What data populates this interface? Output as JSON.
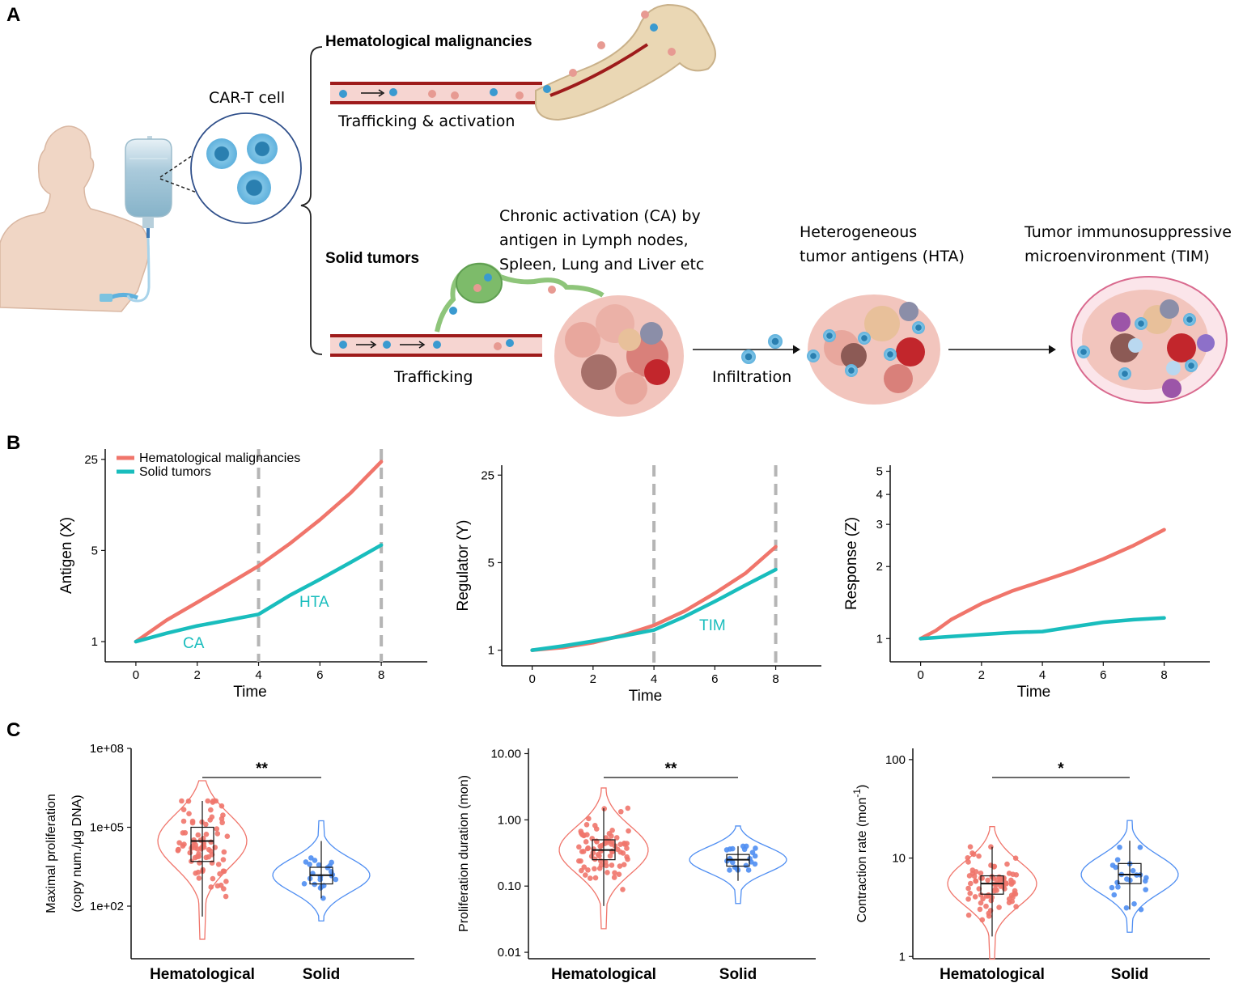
{
  "panel_labels": {
    "a": "A",
    "b": "B",
    "c": "C"
  },
  "panel_a": {
    "car_t_label": "CAR-T cell",
    "hematological_title": "Hematological malignancies",
    "trafficking_activation": "Trafficking & activation",
    "solid_title": "Solid tumors",
    "chronic_activation": [
      "Chronic activation (CA)  by",
      "antigen in Lymph nodes,",
      "Spleen, Lung and Liver etc"
    ],
    "heterogeneous": [
      "Heterogeneous",
      "tumor antigens (HTA)"
    ],
    "tim": [
      "Tumor immunosuppressive",
      "microenvironment (TIM)"
    ],
    "trafficking": "Trafficking",
    "infiltration": "Infiltration"
  },
  "colors": {
    "hematological": "#f0756b",
    "solid": "#19bdbd",
    "solid_c": "#4f8ef2",
    "dash": "#b5b5b5",
    "vessel": "#9e1b1b"
  },
  "chart_data": [
    {
      "type": "line",
      "xlabel": "Time",
      "ylabel": "Antigen (X)",
      "y_scale": "log",
      "ylim": [
        0.7,
        30
      ],
      "xlim": [
        -1,
        9.5
      ],
      "x_ticks": [
        "0",
        "2",
        "4",
        "6",
        "8"
      ],
      "y_ticks": [
        "1",
        "5",
        "25"
      ],
      "legend": [
        "Hematological malignancies",
        "Solid tumors"
      ],
      "legend_position": "top-left",
      "annotations": [
        "CA",
        "HTA"
      ],
      "dashed_x": [
        4,
        8
      ],
      "series": [
        {
          "name": "Hematological malignancies",
          "x": [
            0,
            1,
            2,
            3,
            4,
            5,
            6,
            7,
            8
          ],
          "values": [
            1.0,
            1.46,
            2.0,
            2.75,
            3.8,
            5.6,
            8.6,
            13.8,
            24.0
          ]
        },
        {
          "name": "Solid tumors",
          "x": [
            0,
            1,
            2,
            3,
            4,
            5,
            6,
            7,
            8
          ],
          "values": [
            1.0,
            1.16,
            1.32,
            1.46,
            1.62,
            2.25,
            3.0,
            4.05,
            5.5
          ]
        }
      ]
    },
    {
      "type": "line",
      "xlabel": "Time",
      "ylabel": "Regulator (Y)",
      "y_scale": "log",
      "ylim": [
        0.75,
        30
      ],
      "xlim": [
        -1,
        9.5
      ],
      "x_ticks": [
        "0",
        "2",
        "4",
        "6",
        "8"
      ],
      "y_ticks": [
        "1",
        "5",
        "25"
      ],
      "annotations": [
        "TIM"
      ],
      "dashed_x": [
        4,
        8
      ],
      "series": [
        {
          "name": "Hematological malignancies",
          "x": [
            0,
            1,
            2,
            3,
            4,
            5,
            6,
            7,
            8
          ],
          "values": [
            1.0,
            1.05,
            1.15,
            1.32,
            1.58,
            2.05,
            2.85,
            4.1,
            6.7
          ]
        },
        {
          "name": "Solid tumors",
          "x": [
            0,
            1,
            2,
            3,
            4,
            5,
            6,
            7,
            8
          ],
          "values": [
            1.0,
            1.08,
            1.18,
            1.3,
            1.45,
            1.85,
            2.45,
            3.3,
            4.4
          ]
        }
      ]
    },
    {
      "type": "line",
      "xlabel": "Time",
      "ylabel": "Response (Z)",
      "y_scale": "log",
      "ylim": [
        0.8,
        5.3
      ],
      "xlim": [
        -1,
        9.5
      ],
      "x_ticks": [
        "0",
        "2",
        "4",
        "6",
        "8"
      ],
      "y_ticks": [
        "1",
        "2",
        "3",
        "4",
        "5"
      ],
      "series": [
        {
          "name": "Hematological malignancies",
          "x": [
            0,
            0.5,
            1,
            2,
            3,
            4,
            5,
            6,
            7,
            8
          ],
          "values": [
            1.0,
            1.08,
            1.2,
            1.4,
            1.58,
            1.74,
            1.92,
            2.15,
            2.45,
            2.85
          ]
        },
        {
          "name": "Solid tumors",
          "x": [
            0,
            1,
            2,
            3,
            4,
            5,
            6,
            7,
            8
          ],
          "values": [
            1.0,
            1.02,
            1.04,
            1.06,
            1.07,
            1.12,
            1.17,
            1.2,
            1.22
          ]
        }
      ]
    },
    {
      "type": "violin",
      "ylabel": [
        "Maximal proliferation",
        "(copy num./μg DNA)"
      ],
      "y_scale": "log",
      "ylim": [
        1,
        100000000.0
      ],
      "y_ticks": [
        "1e+02",
        "1e+05",
        "1e+08"
      ],
      "categories": [
        "Hematological",
        "Solid"
      ],
      "significance": "**",
      "groups": [
        {
          "name": "Hematological",
          "median": 30000,
          "q1": 5000,
          "q3": 100000,
          "whisker_low": 40,
          "whisker_high": 1000000,
          "n_points": 80
        },
        {
          "name": "Solid",
          "median": 1500,
          "q1": 700,
          "q3": 3000,
          "whisker_low": 200,
          "whisker_high": 30000,
          "n_points": 22
        }
      ]
    },
    {
      "type": "violin",
      "ylabel": [
        "Proliferation duration (mon)"
      ],
      "y_scale": "log",
      "ylim": [
        0.008,
        12
      ],
      "y_ticks": [
        "0.01",
        "0.10",
        "1.00",
        "10.00"
      ],
      "categories": [
        "Hematological",
        "Solid"
      ],
      "significance": "**",
      "groups": [
        {
          "name": "Hematological",
          "median": 0.35,
          "q1": 0.25,
          "q3": 0.5,
          "whisker_low": 0.05,
          "whisker_high": 1.5,
          "n_points": 80
        },
        {
          "name": "Solid",
          "median": 0.25,
          "q1": 0.2,
          "q3": 0.3,
          "whisker_low": 0.12,
          "whisker_high": 0.4,
          "n_points": 22
        }
      ]
    },
    {
      "type": "violin",
      "ylabel": [
        "Contraction rate (mon",
        "-1",
        ")"
      ],
      "y_scale": "log",
      "ylim": [
        0.95,
        130
      ],
      "y_ticks": [
        "1",
        "10",
        "100"
      ],
      "categories": [
        "Hematological",
        "Solid"
      ],
      "significance": "*",
      "groups": [
        {
          "name": "Hematological",
          "median": 5.5,
          "q1": 4.3,
          "q3": 6.6,
          "whisker_low": 1.6,
          "whisker_high": 13,
          "n_points": 80
        },
        {
          "name": "Solid",
          "median": 6.8,
          "q1": 5.5,
          "q3": 8.8,
          "whisker_low": 3.0,
          "whisker_high": 15,
          "n_points": 22
        }
      ]
    }
  ]
}
